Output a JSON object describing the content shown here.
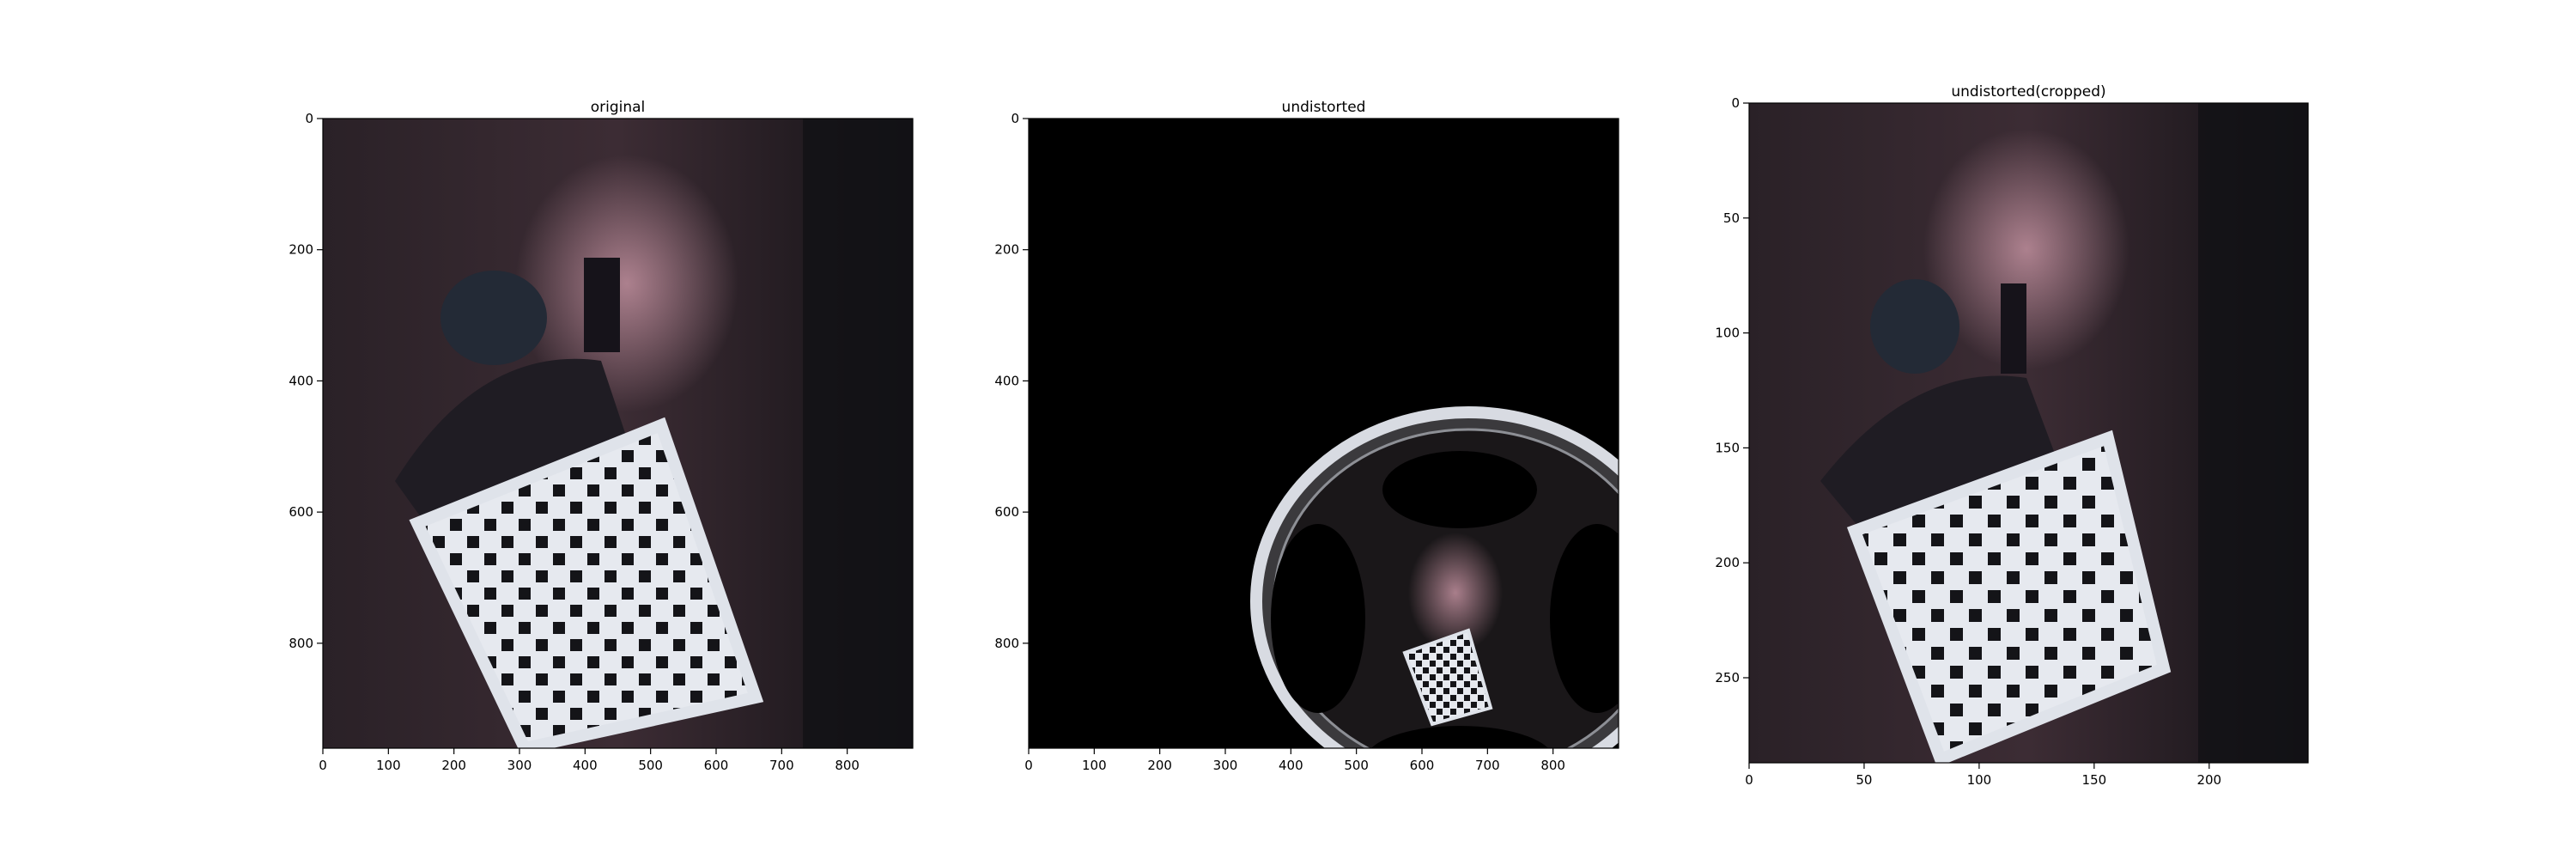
{
  "figure": {
    "background": "#ffffff",
    "axis_color": "#000000"
  },
  "chart_data": [
    {
      "type": "image",
      "title": "original",
      "xlim": [
        0,
        900
      ],
      "ylim": [
        960,
        0
      ],
      "xticks": [
        0,
        100,
        200,
        300,
        400,
        500,
        600,
        700,
        800
      ],
      "yticks": [
        0,
        200,
        400,
        600,
        800
      ],
      "grid": false,
      "content": "dark room scene with a person holding a large black-and-white checkerboard calibration pattern, tilted, lower-center"
    },
    {
      "type": "image",
      "title": "undistorted",
      "xlim": [
        0,
        900
      ],
      "ylim": [
        960,
        0
      ],
      "xticks": [
        0,
        100,
        200,
        300,
        400,
        500,
        600,
        700,
        800
      ],
      "yticks": [
        0,
        200,
        400,
        600,
        800
      ],
      "grid": false,
      "content": "mostly black frame; strongly warped circular region in the lower-right with a small checkerboard near the bottom"
    },
    {
      "type": "image",
      "title": "undistorted(cropped)",
      "xlim": [
        0,
        243
      ],
      "ylim": [
        287,
        0
      ],
      "xticks": [
        0,
        50,
        100,
        150,
        200
      ],
      "yticks": [
        0,
        50,
        100,
        150,
        200,
        250
      ],
      "grid": false,
      "content": "cropped undistorted view of the same scene; person holding the checkerboard"
    }
  ]
}
